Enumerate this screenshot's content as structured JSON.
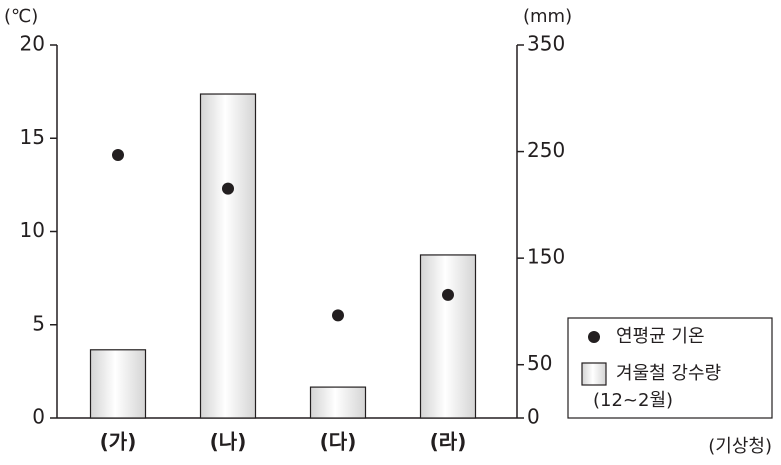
{
  "chart_data": {
    "type": "bar",
    "categories": [
      "(가)",
      "(나)",
      "(다)",
      "(라)"
    ],
    "y_unit": "(℃)",
    "y2_unit": "(mm)",
    "ylim": [
      0,
      20
    ],
    "yticks": [
      0,
      5,
      10,
      15,
      20
    ],
    "y2lim": [
      0,
      350
    ],
    "y2ticks": [
      0,
      50,
      150,
      250,
      350
    ],
    "series": [
      {
        "name": "연평균 기온",
        "type": "scatter",
        "color": "#231f20",
        "values": [
          14.1,
          12.3,
          5.5,
          6.6
        ]
      },
      {
        "name": "겨울철 강수량",
        "type": "bar",
        "axis": "y2",
        "color": "#d4d4d4",
        "values": [
          64,
          304,
          29,
          153
        ]
      }
    ],
    "legend_note": "(12~2월)",
    "source": "(기상청)"
  }
}
